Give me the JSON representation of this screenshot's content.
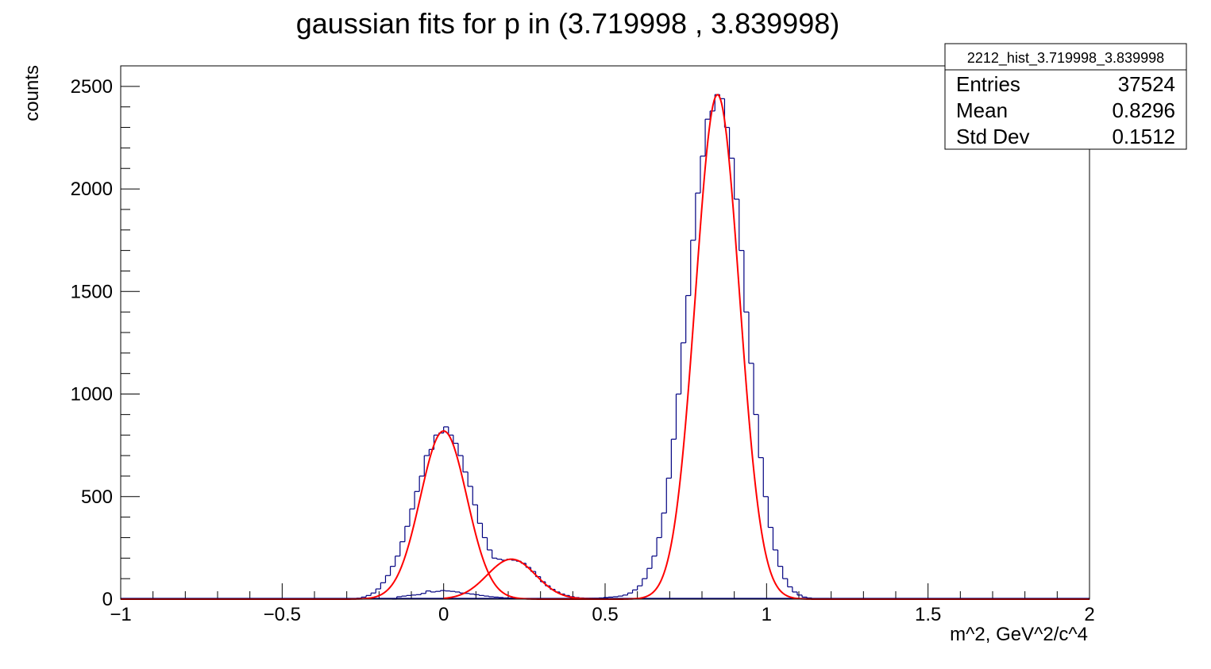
{
  "chart_data": {
    "type": "histogram",
    "title": "gaussian fits for p in (3.719998 , 3.839998)",
    "xlabel": "m^2, GeV^2/c^4",
    "ylabel": "counts",
    "xlim": [
      -1,
      2
    ],
    "ylim": [
      0,
      2600
    ],
    "x_ticks": [
      {
        "value": -1,
        "label": "−1"
      },
      {
        "value": -0.5,
        "label": "−0.5"
      },
      {
        "value": 0,
        "label": "0"
      },
      {
        "value": 0.5,
        "label": "0.5"
      },
      {
        "value": 1,
        "label": "1"
      },
      {
        "value": 1.5,
        "label": "1.5"
      },
      {
        "value": 2,
        "label": "2"
      }
    ],
    "y_ticks": [
      {
        "value": 0,
        "label": "0"
      },
      {
        "value": 500,
        "label": "500"
      },
      {
        "value": 1000,
        "label": "1000"
      },
      {
        "value": 1500,
        "label": "1500"
      },
      {
        "value": 2000,
        "label": "2000"
      },
      {
        "value": 2500,
        "label": "2500"
      }
    ],
    "stats_box": {
      "name": "2212_hist_3.719998_3.839998",
      "rows": [
        {
          "label": "Entries",
          "value": "37524"
        },
        {
          "label": "Mean",
          "value": "0.8296"
        },
        {
          "label": "Std Dev",
          "value": "0.1512"
        }
      ]
    },
    "histogram": {
      "color": "#000080",
      "bin_width": 0.015,
      "bins": [
        {
          "x": -0.3,
          "y": 0
        },
        {
          "x": -0.285,
          "y": 2
        },
        {
          "x": -0.27,
          "y": 5
        },
        {
          "x": -0.255,
          "y": 10
        },
        {
          "x": -0.24,
          "y": 18
        },
        {
          "x": -0.225,
          "y": 30
        },
        {
          "x": -0.21,
          "y": 50
        },
        {
          "x": -0.195,
          "y": 80
        },
        {
          "x": -0.18,
          "y": 115
        },
        {
          "x": -0.165,
          "y": 160
        },
        {
          "x": -0.15,
          "y": 210
        },
        {
          "x": -0.135,
          "y": 280
        },
        {
          "x": -0.12,
          "y": 355
        },
        {
          "x": -0.105,
          "y": 440
        },
        {
          "x": -0.09,
          "y": 525
        },
        {
          "x": -0.075,
          "y": 600
        },
        {
          "x": -0.06,
          "y": 700
        },
        {
          "x": -0.045,
          "y": 730
        },
        {
          "x": -0.03,
          "y": 800
        },
        {
          "x": -0.015,
          "y": 810
        },
        {
          "x": 0.0,
          "y": 840
        },
        {
          "x": 0.015,
          "y": 800
        },
        {
          "x": 0.03,
          "y": 760
        },
        {
          "x": 0.045,
          "y": 700
        },
        {
          "x": 0.06,
          "y": 620
        },
        {
          "x": 0.075,
          "y": 550
        },
        {
          "x": 0.09,
          "y": 460
        },
        {
          "x": 0.105,
          "y": 370
        },
        {
          "x": 0.12,
          "y": 300
        },
        {
          "x": 0.135,
          "y": 240
        },
        {
          "x": 0.15,
          "y": 200
        },
        {
          "x": 0.165,
          "y": 195
        },
        {
          "x": 0.18,
          "y": 190
        },
        {
          "x": 0.195,
          "y": 195
        },
        {
          "x": 0.21,
          "y": 190
        },
        {
          "x": 0.225,
          "y": 185
        },
        {
          "x": 0.24,
          "y": 175
        },
        {
          "x": 0.255,
          "y": 155
        },
        {
          "x": 0.27,
          "y": 135
        },
        {
          "x": 0.285,
          "y": 110
        },
        {
          "x": 0.3,
          "y": 85
        },
        {
          "x": 0.315,
          "y": 65
        },
        {
          "x": 0.33,
          "y": 48
        },
        {
          "x": 0.345,
          "y": 35
        },
        {
          "x": 0.36,
          "y": 25
        },
        {
          "x": 0.375,
          "y": 18
        },
        {
          "x": 0.39,
          "y": 12
        },
        {
          "x": 0.405,
          "y": 8
        },
        {
          "x": 0.42,
          "y": 6
        },
        {
          "x": 0.435,
          "y": 5
        },
        {
          "x": 0.45,
          "y": 5
        },
        {
          "x": 0.465,
          "y": 5
        },
        {
          "x": 0.48,
          "y": 6
        },
        {
          "x": 0.495,
          "y": 8
        },
        {
          "x": 0.51,
          "y": 10
        },
        {
          "x": 0.525,
          "y": 12
        },
        {
          "x": 0.54,
          "y": 15
        },
        {
          "x": 0.555,
          "y": 20
        },
        {
          "x": 0.57,
          "y": 30
        },
        {
          "x": 0.585,
          "y": 45
        },
        {
          "x": 0.6,
          "y": 65
        },
        {
          "x": 0.615,
          "y": 100
        },
        {
          "x": 0.63,
          "y": 150
        },
        {
          "x": 0.645,
          "y": 210
        },
        {
          "x": 0.66,
          "y": 300
        },
        {
          "x": 0.675,
          "y": 420
        },
        {
          "x": 0.69,
          "y": 590
        },
        {
          "x": 0.705,
          "y": 780
        },
        {
          "x": 0.72,
          "y": 1000
        },
        {
          "x": 0.735,
          "y": 1250
        },
        {
          "x": 0.75,
          "y": 1480
        },
        {
          "x": 0.765,
          "y": 1750
        },
        {
          "x": 0.78,
          "y": 1980
        },
        {
          "x": 0.795,
          "y": 2160
        },
        {
          "x": 0.81,
          "y": 2340
        },
        {
          "x": 0.825,
          "y": 2380
        },
        {
          "x": 0.84,
          "y": 2460
        },
        {
          "x": 0.855,
          "y": 2440
        },
        {
          "x": 0.87,
          "y": 2300
        },
        {
          "x": 0.885,
          "y": 2150
        },
        {
          "x": 0.9,
          "y": 1950
        },
        {
          "x": 0.915,
          "y": 1700
        },
        {
          "x": 0.93,
          "y": 1400
        },
        {
          "x": 0.945,
          "y": 1150
        },
        {
          "x": 0.96,
          "y": 900
        },
        {
          "x": 0.975,
          "y": 690
        },
        {
          "x": 0.99,
          "y": 500
        },
        {
          "x": 1.005,
          "y": 350
        },
        {
          "x": 1.02,
          "y": 240
        },
        {
          "x": 1.035,
          "y": 160
        },
        {
          "x": 1.05,
          "y": 100
        },
        {
          "x": 1.065,
          "y": 60
        },
        {
          "x": 1.08,
          "y": 35
        },
        {
          "x": 1.095,
          "y": 20
        },
        {
          "x": 1.11,
          "y": 10
        },
        {
          "x": 1.125,
          "y": 6
        },
        {
          "x": 1.14,
          "y": 3
        },
        {
          "x": 1.155,
          "y": 1
        },
        {
          "x": 1.17,
          "y": 0
        }
      ]
    },
    "inner_histogram": {
      "color": "#000080",
      "bin_width": 0.015,
      "bins": [
        {
          "x": -0.16,
          "y": 0
        },
        {
          "x": -0.145,
          "y": 12
        },
        {
          "x": -0.13,
          "y": 15
        },
        {
          "x": -0.115,
          "y": 18
        },
        {
          "x": -0.1,
          "y": 20
        },
        {
          "x": -0.085,
          "y": 22
        },
        {
          "x": -0.07,
          "y": 28
        },
        {
          "x": -0.055,
          "y": 40
        },
        {
          "x": -0.04,
          "y": 35
        },
        {
          "x": -0.025,
          "y": 38
        },
        {
          "x": -0.01,
          "y": 42
        },
        {
          "x": 0.005,
          "y": 40
        },
        {
          "x": 0.02,
          "y": 38
        },
        {
          "x": 0.035,
          "y": 35
        },
        {
          "x": 0.05,
          "y": 30
        },
        {
          "x": 0.065,
          "y": 28
        },
        {
          "x": 0.08,
          "y": 25
        },
        {
          "x": 0.095,
          "y": 22
        },
        {
          "x": 0.11,
          "y": 18
        },
        {
          "x": 0.125,
          "y": 15
        },
        {
          "x": 0.14,
          "y": 12
        },
        {
          "x": 0.155,
          "y": 10
        },
        {
          "x": 0.17,
          "y": 8
        },
        {
          "x": 0.185,
          "y": 6
        },
        {
          "x": 0.2,
          "y": 5
        },
        {
          "x": 0.215,
          "y": 4
        },
        {
          "x": 0.23,
          "y": 3
        },
        {
          "x": 0.245,
          "y": 2
        },
        {
          "x": 0.26,
          "y": 1
        },
        {
          "x": 0.275,
          "y": 0
        }
      ]
    },
    "fits": [
      {
        "color": "#ff0000",
        "amplitude": 820,
        "mean": 0.0,
        "sigma": 0.072,
        "range": [
          -1,
          0.5
        ]
      },
      {
        "color": "#ff0000",
        "amplitude": 195,
        "mean": 0.21,
        "sigma": 0.075,
        "range": [
          0.0,
          0.5
        ]
      },
      {
        "color": "#ff0000",
        "amplitude": 2460,
        "mean": 0.848,
        "sigma": 0.068,
        "range": [
          0.45,
          2
        ]
      }
    ]
  }
}
